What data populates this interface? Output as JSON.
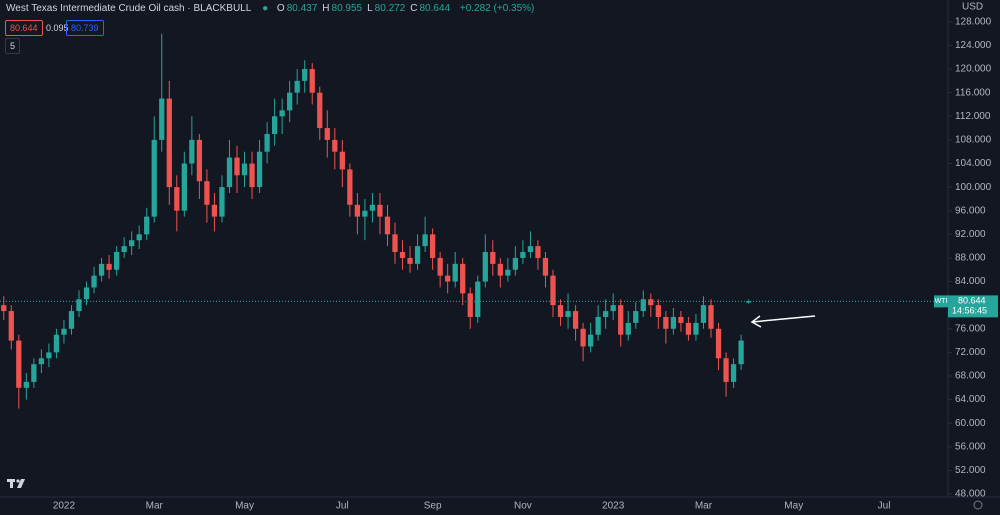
{
  "header": {
    "title": "West Texas Intermediate Crude Oil cash · BLACKBULL",
    "ohlc": [
      {
        "label": "O",
        "value": 80.437
      },
      {
        "label": "H",
        "value": 80.955
      },
      {
        "label": "L",
        "value": 80.272
      },
      {
        "label": "C",
        "value": 80.644
      }
    ],
    "change": "+0.282 (+0.35%)",
    "sell": 80.644,
    "spread": 0.095,
    "buy": 80.739,
    "indicators": 5
  },
  "chart_data": {
    "type": "candlestick",
    "currency": "USD",
    "categories": [
      null,
      null,
      null,
      null,
      null,
      null,
      null,
      null,
      "2022",
      null,
      null,
      null,
      null,
      null,
      null,
      null,
      null,
      null,
      null,
      null,
      "Mar",
      null,
      null,
      null,
      null,
      null,
      null,
      null,
      null,
      null,
      null,
      null,
      "May",
      null,
      null,
      null,
      null,
      null,
      null,
      null,
      null,
      null,
      null,
      null,
      null,
      "Jul",
      null,
      null,
      null,
      null,
      null,
      null,
      null,
      null,
      null,
      null,
      null,
      "Sep",
      null,
      null,
      null,
      null,
      null,
      null,
      null,
      null,
      null,
      null,
      null,
      "Nov",
      null,
      null,
      null,
      null,
      null,
      null,
      null,
      null,
      null,
      null,
      null,
      "2023",
      null,
      null,
      null,
      null,
      null,
      null,
      null,
      null,
      null,
      null,
      null,
      "Mar",
      null,
      null,
      null,
      null,
      null,
      null,
      null,
      null,
      null,
      null,
      null,
      "May",
      null,
      null,
      null,
      null,
      null,
      null,
      null,
      null,
      null,
      null,
      null,
      "Jul",
      null,
      null,
      null,
      null,
      null,
      null,
      null,
      null
    ],
    "open": [
      80,
      79,
      74,
      66,
      67,
      70,
      71,
      72,
      75,
      76,
      79,
      81,
      83,
      85,
      87,
      86,
      89,
      90,
      91,
      92,
      95,
      108,
      115,
      100,
      96,
      104,
      108,
      101,
      97,
      95,
      100,
      105,
      102,
      104,
      100,
      106,
      109,
      112,
      113,
      116,
      118,
      120,
      116,
      110,
      108,
      106,
      103,
      97,
      95,
      96,
      97,
      95,
      92,
      89,
      88,
      87,
      90,
      92,
      88,
      85,
      84,
      87,
      82,
      78,
      84,
      89,
      87,
      85,
      86,
      88,
      89,
      90,
      88,
      85,
      80,
      78,
      79,
      76,
      73,
      75,
      78,
      79,
      80,
      75,
      77,
      79,
      81,
      80,
      78,
      76,
      78,
      77,
      75,
      77,
      80,
      76,
      71,
      67,
      70,
      80.437,
      null,
      null,
      null,
      null,
      null,
      null,
      null,
      null,
      null,
      null,
      null,
      null,
      null,
      null,
      null,
      null,
      null,
      null,
      null,
      null,
      null,
      null,
      null,
      null,
      null,
      null
    ],
    "high": [
      81.5,
      80,
      75,
      68.5,
      71,
      72.5,
      73.5,
      76,
      77.5,
      80,
      82.5,
      84,
      86.5,
      88,
      88.5,
      90,
      91.5,
      92.5,
      93.5,
      96.5,
      112,
      126,
      118,
      102,
      106,
      112,
      109,
      103,
      99,
      102,
      108,
      107,
      106,
      106,
      108,
      111,
      115,
      115,
      118,
      120,
      121.5,
      121,
      117,
      113,
      110,
      108,
      104,
      99,
      98,
      99,
      99,
      97,
      94,
      91,
      90,
      92,
      95,
      93,
      89,
      87,
      89,
      88,
      83,
      85,
      92,
      91,
      88,
      88,
      90,
      91,
      92.5,
      91,
      89,
      86,
      81,
      82,
      80,
      77,
      77,
      80,
      81,
      82,
      81,
      79,
      80.5,
      82.5,
      82,
      81,
      79,
      79.5,
      79,
      78,
      78.5,
      81.5,
      81,
      77,
      72,
      71,
      75,
      80.955,
      null,
      null,
      null,
      null,
      null,
      null,
      null,
      null,
      null,
      null,
      null,
      null,
      null,
      null,
      null,
      null,
      null,
      null,
      null,
      null,
      null,
      null,
      null,
      null,
      null,
      null
    ],
    "low": [
      77.5,
      72.5,
      62.5,
      64,
      66,
      68.5,
      69.5,
      71,
      73.5,
      75,
      78,
      80,
      82,
      84,
      84.5,
      85,
      88,
      88.5,
      89.5,
      91,
      94,
      106,
      97,
      92.5,
      95,
      102,
      98,
      94,
      92.5,
      94,
      99,
      99,
      100,
      98,
      99,
      104,
      107,
      109,
      111,
      114,
      116,
      114,
      108,
      105,
      103,
      100,
      95,
      92,
      91,
      94,
      92,
      90,
      87,
      86,
      85.5,
      86,
      89,
      86,
      83,
      82,
      83,
      80,
      76,
      77,
      83,
      85,
      83,
      84,
      85,
      87,
      88,
      86,
      83,
      78,
      76.5,
      76,
      74,
      70.5,
      72,
      74,
      76,
      77.5,
      73,
      74,
      76,
      78,
      78,
      76,
      73.5,
      75,
      75.5,
      74,
      74,
      76,
      74.5,
      69,
      64.5,
      66,
      69,
      80.272,
      null,
      null,
      null,
      null,
      null,
      null,
      null,
      null,
      null,
      null,
      null,
      null,
      null,
      null,
      null,
      null,
      null,
      null,
      null,
      null,
      null,
      null,
      null,
      null,
      null,
      null
    ],
    "close": [
      79,
      74,
      66,
      67,
      70,
      71,
      72,
      75,
      76,
      79,
      81,
      83,
      85,
      87,
      86,
      89,
      90,
      91,
      92,
      95,
      108,
      115,
      100,
      96,
      104,
      108,
      101,
      97,
      95,
      100,
      105,
      102,
      104,
      100,
      106,
      109,
      112,
      113,
      116,
      118,
      120,
      116,
      110,
      108,
      106,
      103,
      97,
      95,
      96,
      97,
      95,
      92,
      89,
      88,
      87,
      90,
      92,
      88,
      85,
      84,
      87,
      82,
      78,
      84,
      89,
      87,
      85,
      86,
      88,
      89,
      90,
      88,
      85,
      80,
      78,
      79,
      76,
      73,
      75,
      78,
      79,
      80,
      75,
      77,
      79,
      81,
      80,
      78,
      76,
      78,
      77,
      75,
      77,
      80,
      76,
      71,
      67,
      70,
      74,
      80.644,
      null,
      null,
      null,
      null,
      null,
      null,
      null,
      null,
      null,
      null,
      null,
      null,
      null,
      null,
      null,
      null,
      null,
      null,
      null,
      null,
      null,
      null,
      null,
      null,
      null,
      null
    ],
    "up_color": "#26a69a",
    "down_color": "#ef5350",
    "ylim": [
      47.5,
      131.7
    ],
    "yticks": [
      {
        "value": 48,
        "label": "48.000"
      },
      {
        "value": 52,
        "label": "52.000"
      },
      {
        "value": 56,
        "label": "56.000"
      },
      {
        "value": 60,
        "label": "60.000"
      },
      {
        "value": 64,
        "label": "64.000"
      },
      {
        "value": 68,
        "label": "68.000"
      },
      {
        "value": 72,
        "label": "72.000"
      },
      {
        "value": 76,
        "label": "76.000"
      },
      {
        "value": 80,
        "label": "80.000"
      },
      {
        "value": 84,
        "label": "84.000"
      },
      {
        "value": 88,
        "label": "88.000"
      },
      {
        "value": 92,
        "label": "92.000"
      },
      {
        "value": 96,
        "label": "96.000"
      },
      {
        "value": 100,
        "label": "100.000"
      },
      {
        "value": 104,
        "label": "104.000"
      },
      {
        "value": 108,
        "label": "108.000"
      },
      {
        "value": 112,
        "label": "112.000"
      },
      {
        "value": 116,
        "label": "116.000"
      },
      {
        "value": 120,
        "label": "120.000"
      },
      {
        "value": 124,
        "label": "124.000"
      },
      {
        "value": 128,
        "label": "128.000"
      }
    ],
    "grid": false,
    "last_price": 80.644,
    "symbol": "WTI",
    "countdown": "14:56:45"
  }
}
